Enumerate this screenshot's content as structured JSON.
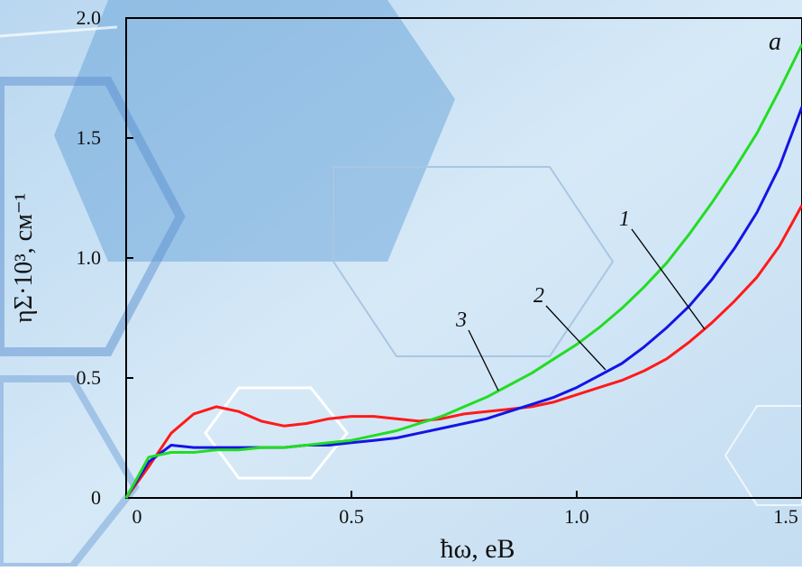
{
  "chart_data": {
    "type": "line",
    "panel_label": "a",
    "x_label": "ħω, eB",
    "y_label": "ηΣ·10³, см⁻¹",
    "x": [
      0,
      0.05,
      0.1,
      0.15,
      0.2,
      0.25,
      0.3,
      0.35,
      0.4,
      0.45,
      0.5,
      0.55,
      0.6,
      0.65,
      0.7,
      0.75,
      0.8,
      0.85,
      0.9,
      0.95,
      1.0,
      1.05,
      1.1,
      1.15,
      1.2,
      1.25,
      1.3,
      1.35,
      1.4,
      1.45,
      1.5
    ],
    "series": [
      {
        "name": "1",
        "color": "#ff1a1a",
        "values": [
          0,
          0.13,
          0.27,
          0.35,
          0.38,
          0.36,
          0.32,
          0.3,
          0.31,
          0.33,
          0.34,
          0.34,
          0.33,
          0.32,
          0.33,
          0.35,
          0.36,
          0.37,
          0.38,
          0.4,
          0.43,
          0.46,
          0.49,
          0.53,
          0.58,
          0.65,
          0.73,
          0.82,
          0.92,
          1.05,
          1.22
        ]
      },
      {
        "name": "2",
        "color": "#1414e6",
        "values": [
          0,
          0.15,
          0.22,
          0.21,
          0.21,
          0.21,
          0.21,
          0.21,
          0.22,
          0.22,
          0.23,
          0.24,
          0.25,
          0.27,
          0.29,
          0.31,
          0.33,
          0.36,
          0.39,
          0.42,
          0.46,
          0.51,
          0.56,
          0.63,
          0.71,
          0.8,
          0.91,
          1.04,
          1.19,
          1.38,
          1.63
        ]
      },
      {
        "name": "3",
        "color": "#22dd22",
        "values": [
          0,
          0.17,
          0.19,
          0.19,
          0.2,
          0.2,
          0.21,
          0.21,
          0.22,
          0.23,
          0.24,
          0.26,
          0.28,
          0.31,
          0.34,
          0.38,
          0.42,
          0.47,
          0.52,
          0.58,
          0.64,
          0.71,
          0.79,
          0.88,
          0.98,
          1.1,
          1.23,
          1.37,
          1.52,
          1.7,
          1.89
        ]
      }
    ],
    "xlim": [
      0,
      1.5
    ],
    "xticks": [
      0,
      {
        "value": 0.5,
        "label": "0.5"
      },
      {
        "value": 1,
        "label": "1.0"
      },
      {
        "value": 1.5,
        "label": "1.5"
      }
    ],
    "ylim": [
      0,
      2
    ],
    "yticks": [
      0,
      {
        "value": 0.5,
        "label": "0.5"
      },
      {
        "value": 1,
        "label": "1.0"
      },
      {
        "value": 1.5,
        "label": "1.5"
      },
      {
        "value": 2,
        "label": "2.0"
      }
    ],
    "grid": false
  }
}
